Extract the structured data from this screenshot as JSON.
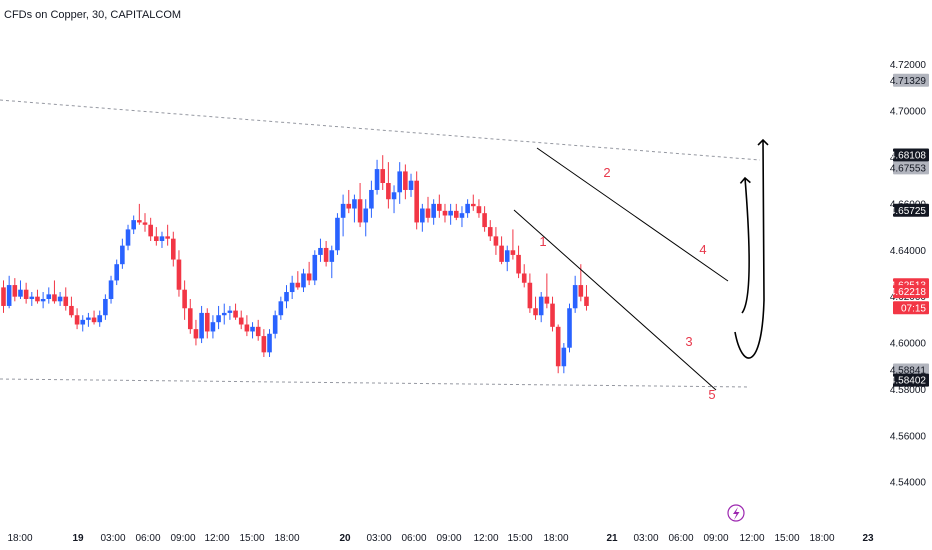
{
  "chart_data": {
    "type": "candlestick",
    "title": "CFDs on Copper, 30, CAPITALCOM",
    "x_ticks": [
      "18:00",
      "19",
      "03:00",
      "06:00",
      "09:00",
      "12:00",
      "15:00",
      "18:00",
      "20",
      "03:00",
      "06:00",
      "09:00",
      "12:00",
      "15:00",
      "18:00",
      "21",
      "03:00",
      "06:00",
      "09:00",
      "12:00",
      "15:00",
      "18:00",
      "23"
    ],
    "y_ticks": [
      "4.72000",
      "4.70000",
      "4.68000",
      "4.66000",
      "4.64000",
      "4.62000",
      "4.60000",
      "4.58000",
      "4.56000",
      "4.54000"
    ],
    "ylim": [
      4.5345,
      4.7272
    ],
    "price_labels": [
      {
        "text": "4.71329",
        "value": 4.71329,
        "style": "gray"
      },
      {
        "text": "4.68108",
        "value": 4.68108,
        "style": "black"
      },
      {
        "text": "4.67553",
        "value": 4.67553,
        "style": "gray"
      },
      {
        "text": "4.65725",
        "value": 4.65725,
        "style": "black"
      },
      {
        "text": "4.62513",
        "value": 4.62513,
        "style": "red"
      },
      {
        "text": "4.62218",
        "value": 4.62218,
        "style": "red"
      },
      {
        "text": "07:15",
        "value": 4.6152,
        "style": "red"
      },
      {
        "text": "4.58841",
        "value": 4.58841,
        "style": "gray"
      },
      {
        "text": "4.58402",
        "value": 4.58402,
        "style": "black"
      }
    ],
    "candles": [
      [
        4.624,
        4.627,
        4.613,
        4.616
      ],
      [
        4.616,
        4.629,
        4.615,
        4.625
      ],
      [
        4.625,
        4.628,
        4.618,
        4.62
      ],
      [
        4.62,
        4.627,
        4.619,
        4.623
      ],
      [
        4.623,
        4.626,
        4.617,
        4.619
      ],
      [
        4.619,
        4.622,
        4.616,
        4.62
      ],
      [
        4.62,
        4.623,
        4.617,
        4.618
      ],
      [
        4.618,
        4.622,
        4.615,
        4.619
      ],
      [
        4.619,
        4.624,
        4.617,
        4.621
      ],
      [
        4.621,
        4.627,
        4.617,
        4.618
      ],
      [
        4.618,
        4.622,
        4.616,
        4.62
      ],
      [
        4.62,
        4.624,
        4.614,
        4.616
      ],
      [
        4.616,
        4.62,
        4.611,
        4.612
      ],
      [
        4.612,
        4.615,
        4.606,
        4.608
      ],
      [
        4.608,
        4.612,
        4.605,
        4.61
      ],
      [
        4.61,
        4.613,
        4.607,
        4.611
      ],
      [
        4.611,
        4.614,
        4.608,
        4.609
      ],
      [
        4.609,
        4.614,
        4.607,
        4.612
      ],
      [
        4.612,
        4.621,
        4.61,
        4.619
      ],
      [
        4.619,
        4.629,
        4.617,
        4.627
      ],
      [
        4.627,
        4.636,
        4.625,
        4.634
      ],
      [
        4.634,
        4.645,
        4.632,
        4.642
      ],
      [
        4.642,
        4.651,
        4.64,
        4.649
      ],
      [
        4.649,
        4.655,
        4.647,
        4.653
      ],
      [
        4.653,
        4.66,
        4.651,
        4.652
      ],
      [
        4.652,
        4.656,
        4.648,
        4.651
      ],
      [
        4.651,
        4.654,
        4.644,
        4.646
      ],
      [
        4.646,
        4.65,
        4.642,
        4.644
      ],
      [
        4.644,
        4.648,
        4.641,
        4.646
      ],
      [
        4.646,
        4.651,
        4.642,
        4.645
      ],
      [
        4.645,
        4.648,
        4.633,
        4.636
      ],
      [
        4.636,
        4.64,
        4.62,
        4.623
      ],
      [
        4.623,
        4.627,
        4.61,
        4.615
      ],
      [
        4.615,
        4.619,
        4.604,
        4.606
      ],
      [
        4.606,
        4.61,
        4.599,
        4.602
      ],
      [
        4.602,
        4.616,
        4.6,
        4.613
      ],
      [
        4.613,
        4.615,
        4.602,
        4.605
      ],
      [
        4.605,
        4.612,
        4.602,
        4.609
      ],
      [
        4.609,
        4.616,
        4.606,
        4.612
      ],
      [
        4.612,
        4.617,
        4.608,
        4.613
      ],
      [
        4.613,
        4.616,
        4.61,
        4.614
      ],
      [
        4.614,
        4.617,
        4.61,
        4.611
      ],
      [
        4.611,
        4.614,
        4.606,
        4.608
      ],
      [
        4.608,
        4.612,
        4.603,
        4.605
      ],
      [
        4.605,
        4.609,
        4.602,
        4.607
      ],
      [
        4.607,
        4.61,
        4.601,
        4.603
      ],
      [
        4.603,
        4.606,
        4.594,
        4.596
      ],
      [
        4.596,
        4.606,
        4.594,
        4.604
      ],
      [
        4.604,
        4.614,
        4.602,
        4.612
      ],
      [
        4.612,
        4.62,
        4.61,
        4.618
      ],
      [
        4.618,
        4.625,
        4.615,
        4.622
      ],
      [
        4.622,
        4.629,
        4.619,
        4.626
      ],
      [
        4.626,
        4.631,
        4.623,
        4.624
      ],
      [
        4.624,
        4.632,
        4.622,
        4.63
      ],
      [
        4.63,
        4.635,
        4.625,
        4.627
      ],
      [
        4.627,
        4.64,
        4.625,
        4.638
      ],
      [
        4.638,
        4.645,
        4.635,
        4.641
      ],
      [
        4.641,
        4.644,
        4.633,
        4.635
      ],
      [
        4.635,
        4.642,
        4.628,
        4.64
      ],
      [
        4.64,
        4.656,
        4.638,
        4.654
      ],
      [
        4.654,
        4.664,
        4.646,
        4.66
      ],
      [
        4.66,
        4.666,
        4.656,
        4.658
      ],
      [
        4.658,
        4.664,
        4.652,
        4.662
      ],
      [
        4.662,
        4.669,
        4.65,
        4.652
      ],
      [
        4.652,
        4.662,
        4.646,
        4.658
      ],
      [
        4.658,
        4.67,
        4.654,
        4.666
      ],
      [
        4.666,
        4.679,
        4.664,
        4.675
      ],
      [
        4.675,
        4.681,
        4.666,
        4.669
      ],
      [
        4.669,
        4.678,
        4.658,
        4.662
      ],
      [
        4.662,
        4.668,
        4.656,
        4.665
      ],
      [
        4.665,
        4.678,
        4.66,
        4.674
      ],
      [
        4.674,
        4.677,
        4.662,
        4.666
      ],
      [
        4.666,
        4.673,
        4.663,
        4.67
      ],
      [
        4.67,
        4.674,
        4.649,
        4.652
      ],
      [
        4.652,
        4.66,
        4.648,
        4.658
      ],
      [
        4.658,
        4.663,
        4.652,
        4.654
      ],
      [
        4.654,
        4.662,
        4.651,
        4.66
      ],
      [
        4.66,
        4.664,
        4.654,
        4.657
      ],
      [
        4.657,
        4.66,
        4.652,
        4.655
      ],
      [
        4.655,
        4.66,
        4.651,
        4.657
      ],
      [
        4.657,
        4.66,
        4.653,
        4.654
      ],
      [
        4.654,
        4.659,
        4.65,
        4.656
      ],
      [
        4.656,
        4.662,
        4.654,
        4.66
      ],
      [
        4.66,
        4.664,
        4.657,
        4.659
      ],
      [
        4.659,
        4.662,
        4.654,
        4.656
      ],
      [
        4.656,
        4.659,
        4.648,
        4.65
      ],
      [
        4.65,
        4.653,
        4.644,
        4.646
      ],
      [
        4.646,
        4.65,
        4.638,
        4.642
      ],
      [
        4.642,
        4.646,
        4.634,
        4.635
      ],
      [
        4.635,
        4.642,
        4.631,
        4.64
      ],
      [
        4.64,
        4.649,
        4.636,
        4.638
      ],
      [
        4.638,
        4.642,
        4.628,
        4.63
      ],
      [
        4.63,
        4.634,
        4.624,
        4.626
      ],
      [
        4.626,
        4.63,
        4.613,
        4.615
      ],
      [
        4.615,
        4.62,
        4.61,
        4.612
      ],
      [
        4.612,
        4.622,
        4.609,
        4.62
      ],
      [
        4.62,
        4.63,
        4.615,
        4.617
      ],
      [
        4.617,
        4.62,
        4.605,
        4.607
      ],
      [
        4.607,
        4.608,
        4.587,
        4.59
      ],
      [
        4.59,
        4.6,
        4.587,
        4.598
      ],
      [
        4.598,
        4.617,
        4.596,
        4.615
      ],
      [
        4.615,
        4.629,
        4.613,
        4.625
      ],
      [
        4.625,
        4.634,
        4.618,
        4.62
      ],
      [
        4.62,
        4.625,
        4.614,
        4.616
      ]
    ]
  },
  "annotations": {
    "wave_labels": [
      "1",
      "2",
      "3",
      "4",
      "5"
    ]
  },
  "colors": {
    "up": "#2962ff",
    "down": "#f23645",
    "wave_label": "#e8394c",
    "channel_line": "#000000",
    "dotted_line": "#9598a1",
    "flash_icon": "#9c27b0"
  },
  "icons": {
    "flash": "lightning-icon"
  }
}
